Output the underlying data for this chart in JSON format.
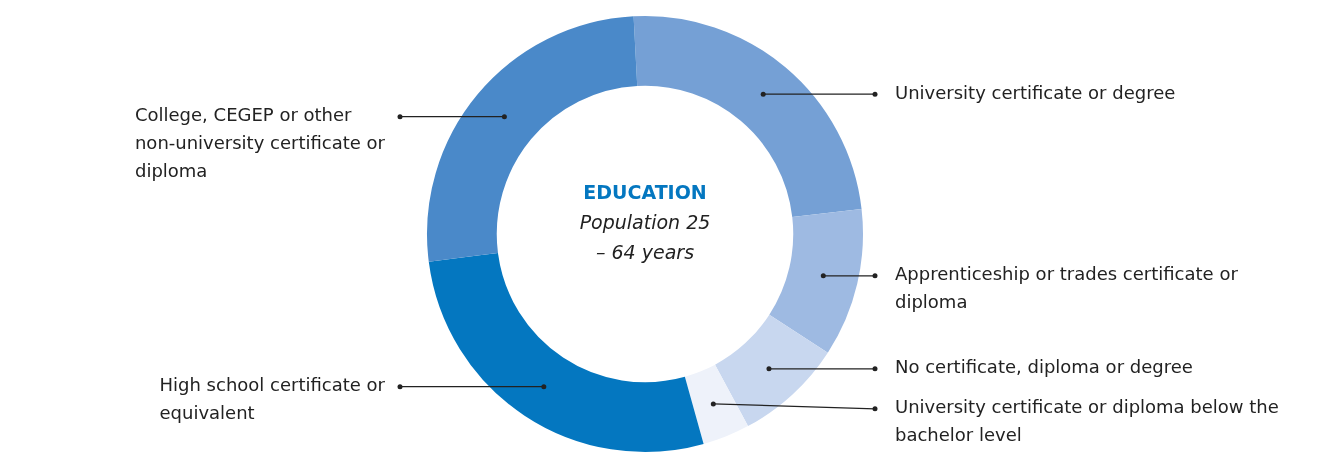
{
  "chart_data": {
    "type": "donut",
    "title": "EDUCATION",
    "subtitle": "Population 25 – 64 years",
    "categories": [
      "University certificate or degree",
      "Apprenticeship or trades certificate or diploma",
      "No certificate, diploma or degree",
      "University certificate or diploma below the bachelor level",
      "High school certificate or equivalent",
      "College, CEGEP or other non-university certificate or diploma"
    ],
    "values": [
      24,
      11,
      8,
      3.5,
      27.3,
      26.2
    ],
    "colors": [
      "#75a0d5",
      "#9ebae2",
      "#c8d7ef",
      "#eef2fa",
      "#0477c0",
      "#4a89c9"
    ],
    "legend": false
  }
}
